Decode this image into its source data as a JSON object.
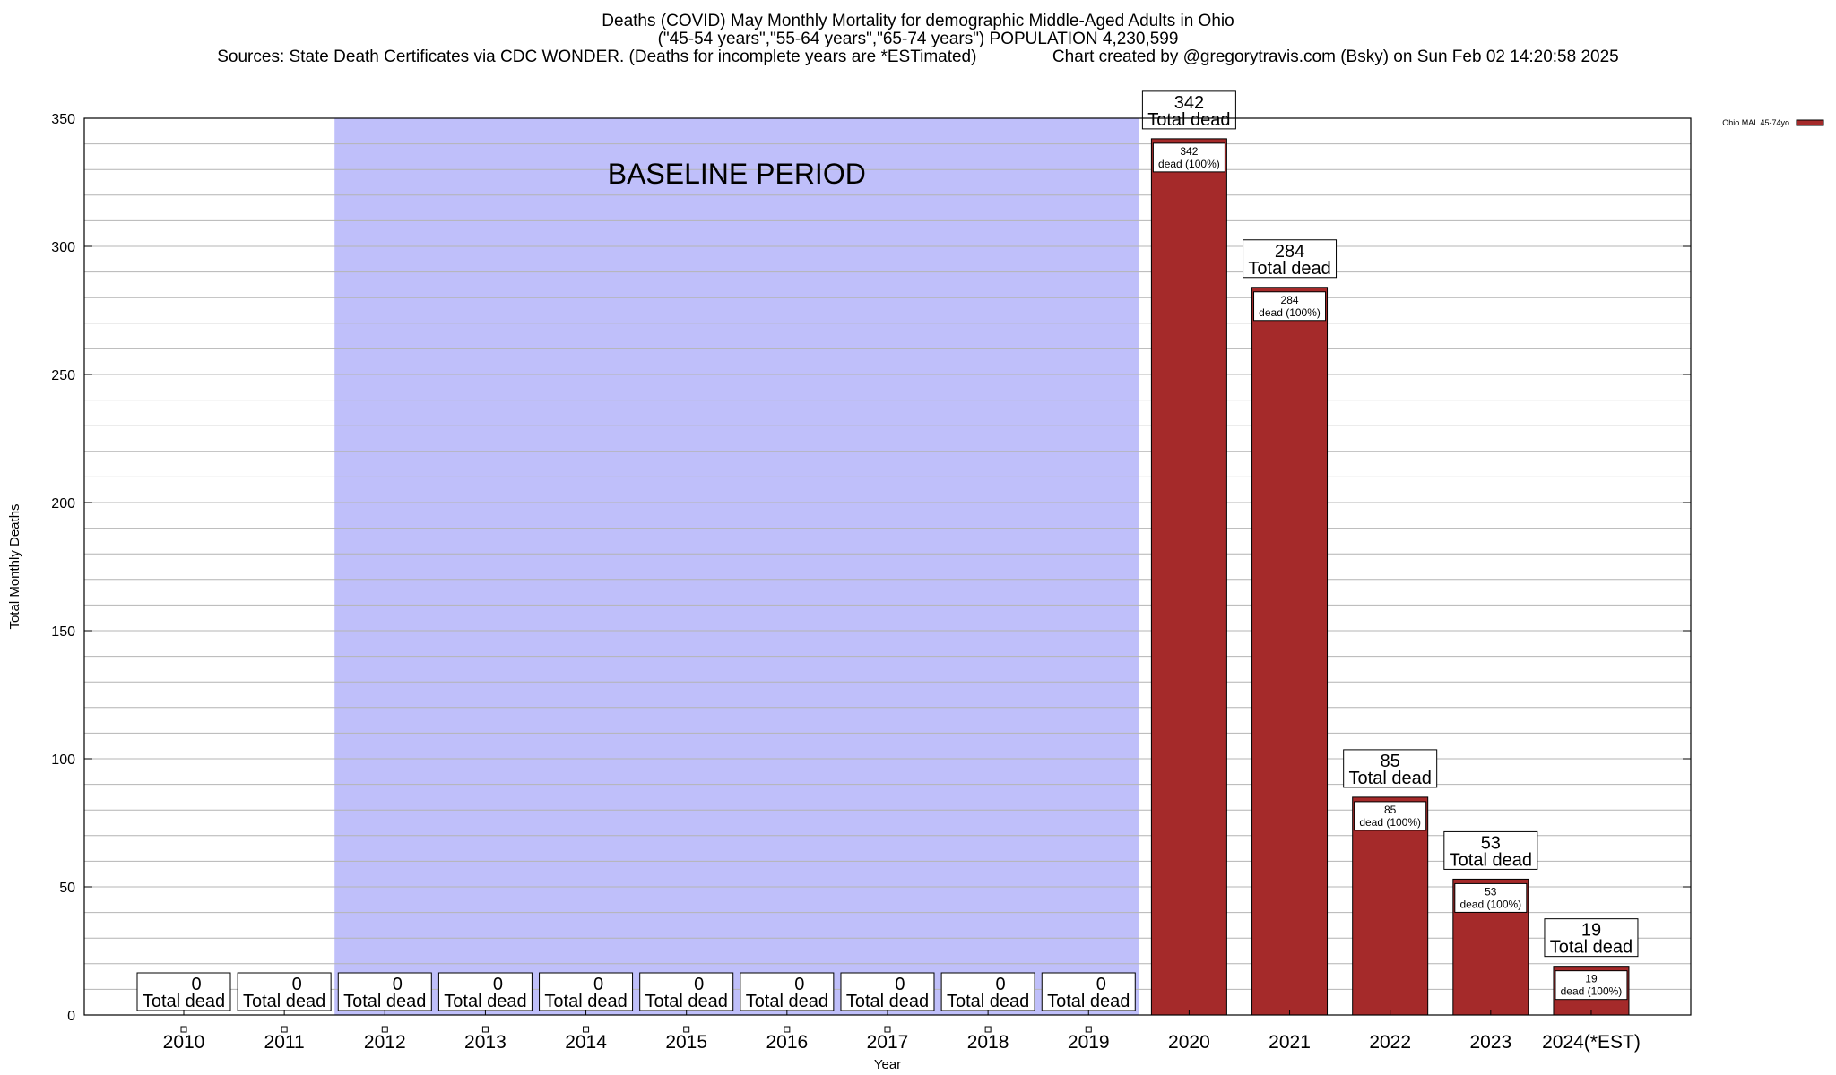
{
  "header": {
    "title_line1": "Deaths (COVID) May Monthly Mortality for demographic Middle-Aged Adults in Ohio",
    "title_line2": "(\"45-54 years\",\"55-64 years\",\"65-74 years\") POPULATION 4,230,599",
    "title_line3": "Sources: State Death Certificates via CDC WONDER. (Deaths for incomplete years are *ESTimated)                Chart created by @gregorytravis.com (Bsky) on Sun Feb 02 14:20:58 2025"
  },
  "chart_data": {
    "type": "bar",
    "categories": [
      "2010",
      "2011",
      "2012",
      "2013",
      "2014",
      "2015",
      "2016",
      "2017",
      "2018",
      "2019",
      "2020",
      "2021",
      "2022",
      "2023",
      "2024(*EST)"
    ],
    "series": [
      {
        "name": "Ohio MAL 45-74yo",
        "values": [
          0,
          0,
          0,
          0,
          0,
          0,
          0,
          0,
          0,
          0,
          342,
          284,
          85,
          53,
          19
        ]
      }
    ],
    "xlabel": "Year",
    "ylabel": "Total Monthly Deaths",
    "ylim": [
      0,
      350
    ],
    "yticks": [
      0,
      50,
      100,
      150,
      200,
      250,
      300,
      350
    ],
    "grid": true,
    "legend_position": "top-right",
    "bar_color": "#a52a2a",
    "baseline_color": "#bfbffa",
    "baseline_period": {
      "label": "BASELINE PERIOD",
      "from": "2012",
      "to": "2019"
    },
    "total_label_suffix": "Total dead",
    "pct_label_suffix": "dead (100%)"
  }
}
